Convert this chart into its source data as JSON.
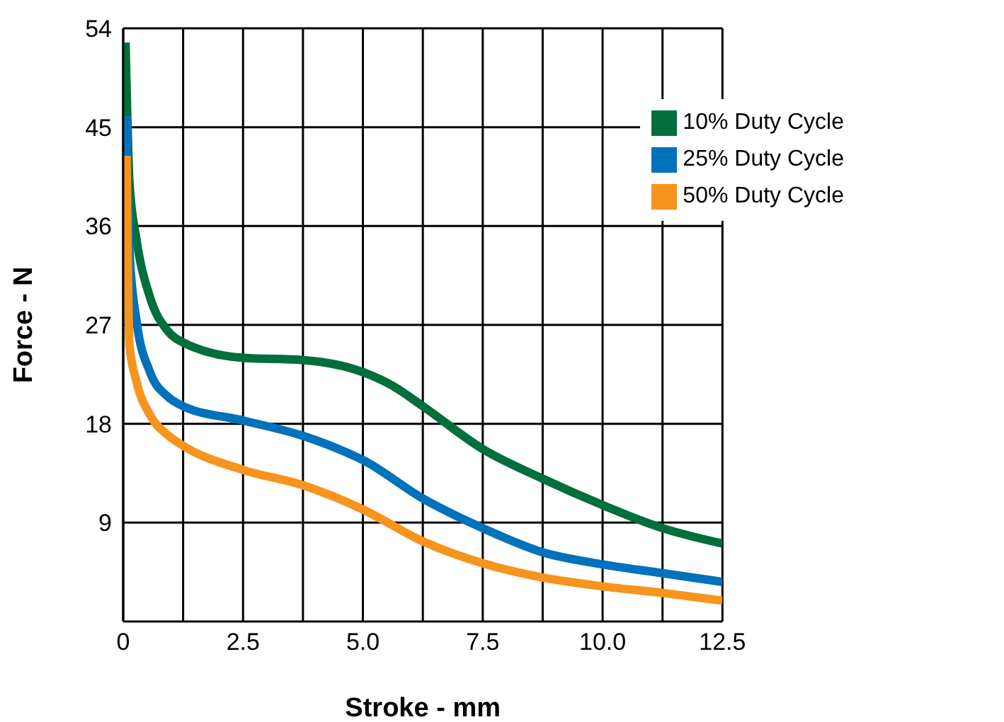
{
  "chart_data": {
    "type": "line",
    "xlabel": "Stroke - mm",
    "ylabel": "Force - N",
    "xlim": [
      0,
      12.5
    ],
    "xticks": [
      0,
      {
        "value": 1.25,
        "label": null
      },
      2.5,
      {
        "value": 3.75,
        "label": null
      },
      {
        "value": 5,
        "label": "5.0"
      },
      {
        "value": 6.25,
        "label": null
      },
      7.5,
      {
        "value": 8.75,
        "label": null
      },
      {
        "value": 10,
        "label": "10.0"
      },
      {
        "value": 11.25,
        "label": null
      },
      12.5
    ],
    "ylim": [
      0,
      54
    ],
    "yticks": [
      9,
      18,
      27,
      36,
      45,
      54
    ],
    "grid": true,
    "legend": "top right",
    "marker": "none",
    "line_style": "solid",
    "series": [
      {
        "name": "10% Duty Cycle",
        "color": "#006f3c",
        "x": [
          0.05,
          0.13,
          0.28,
          0.56,
          0.92,
          1.25,
          2.5,
          3.75,
          5,
          5.6,
          6.25,
          7.5,
          8.75,
          10,
          11.25,
          12.5
        ],
        "values": [
          52.7,
          40,
          34.7,
          29.5,
          26.5,
          25.4,
          24,
          23.8,
          22.7,
          21.5,
          19.6,
          15.7,
          13,
          10.6,
          8.5,
          7.1
        ]
      },
      {
        "name": "25% Duty Cycle",
        "color": "#0072bc",
        "x": [
          0.07,
          0.13,
          0.28,
          0.56,
          0.92,
          1.25,
          2.5,
          3.75,
          4.6,
          5,
          6.25,
          7.5,
          8.75,
          10,
          11.25,
          12.5
        ],
        "values": [
          46,
          33.8,
          27.3,
          22.7,
          20.5,
          19.6,
          18.3,
          16.9,
          15.5,
          14.7,
          11.2,
          8.5,
          6.3,
          5.2,
          4.4,
          3.6
        ]
      },
      {
        "name": "50% Duty Cycle",
        "color": "#f7941d",
        "x": [
          0.07,
          0.13,
          0.28,
          0.56,
          0.92,
          1.25,
          2.5,
          3.75,
          5,
          6.25,
          7.5,
          8.75,
          10,
          11.25,
          12.5
        ],
        "values": [
          42.4,
          25.2,
          21.8,
          18.8,
          17,
          16,
          13.8,
          12.4,
          10.2,
          7.3,
          5.3,
          4,
          3.2,
          2.6,
          1.9
        ]
      }
    ]
  }
}
